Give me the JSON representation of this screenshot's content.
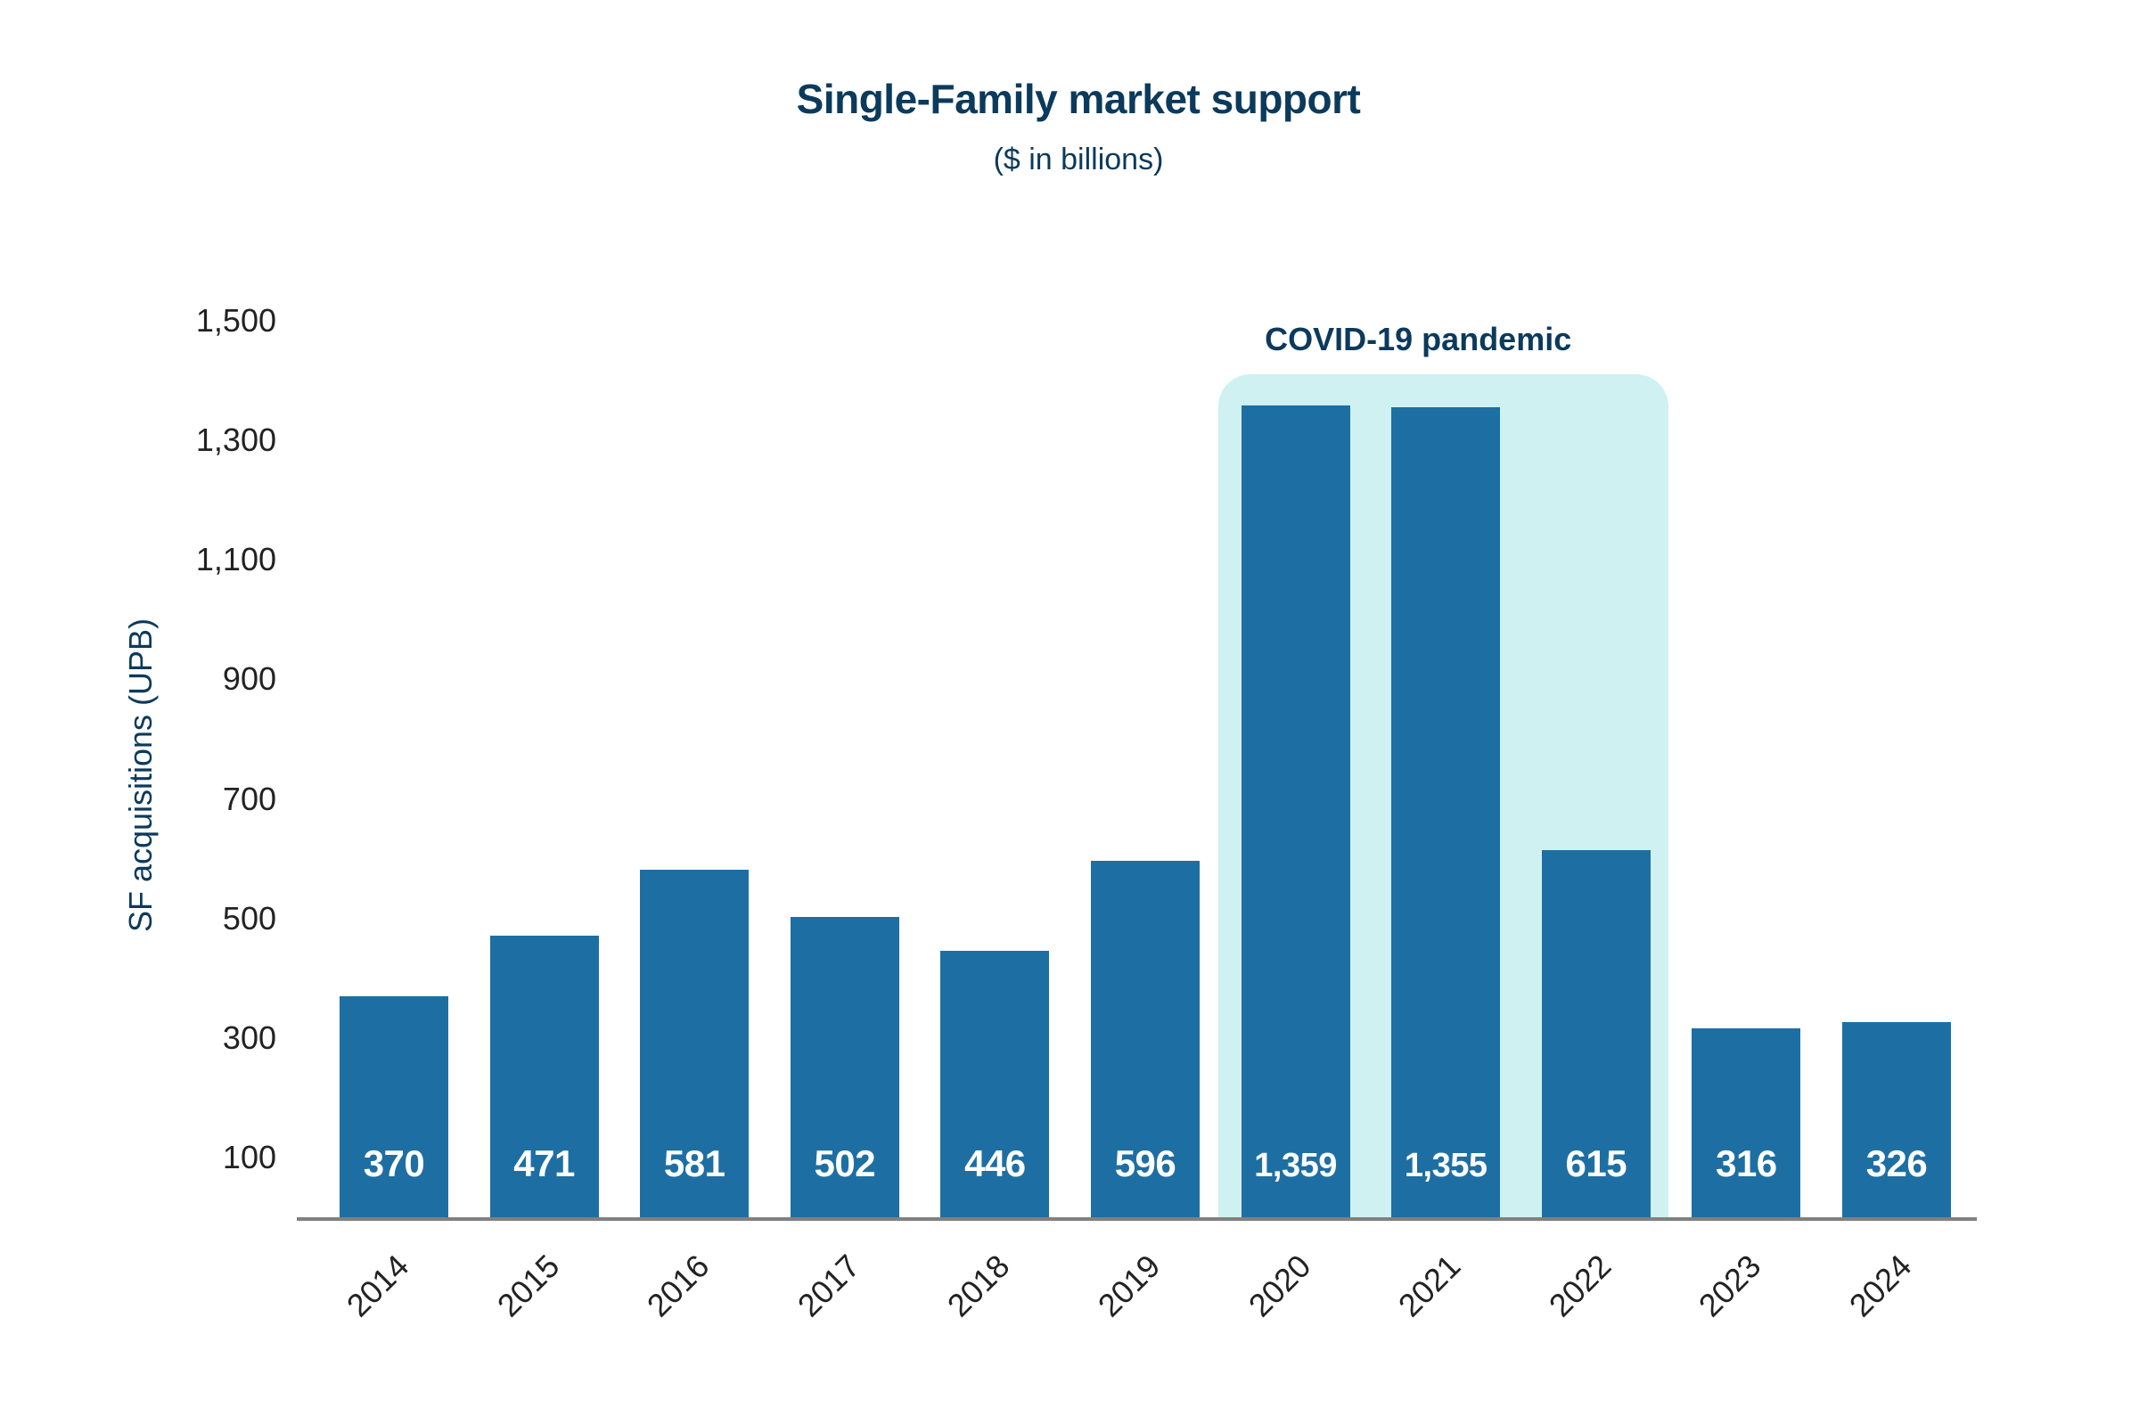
{
  "chart_data": {
    "type": "bar",
    "title": "Single-Family market support",
    "subtitle": "($ in billions)",
    "xlabel": "",
    "ylabel": "SF acquisitions (UPB)",
    "categories": [
      "2014",
      "2015",
      "2016",
      "2017",
      "2018",
      "2019",
      "2020",
      "2021",
      "2022",
      "2023",
      "2024"
    ],
    "values": [
      370,
      471,
      581,
      502,
      446,
      596,
      1359,
      1355,
      615,
      316,
      326
    ],
    "value_labels": [
      "370",
      "471",
      "581",
      "502",
      "446",
      "596",
      "1,359",
      "1,355",
      "615",
      "316",
      "326"
    ],
    "y_ticks": [
      "1,500",
      "1,300",
      "1,100",
      "900",
      "700",
      "500",
      "300",
      "100"
    ],
    "y_tick_values": [
      1500,
      1300,
      1100,
      900,
      700,
      500,
      300,
      100
    ],
    "ylim": [
      0,
      1500
    ],
    "grid": false,
    "legend": null,
    "annotations": [
      {
        "text": "COVID-19 pandemic",
        "span": [
          "2020",
          "2022"
        ],
        "type": "shaded-region"
      }
    ],
    "colors": {
      "bar": "#1d6fa3",
      "highlight": "#cff1f1",
      "title": "#0b3a5c",
      "axis": "#808080",
      "tick_text": "#222222",
      "value_text": "#ffffff"
    }
  }
}
